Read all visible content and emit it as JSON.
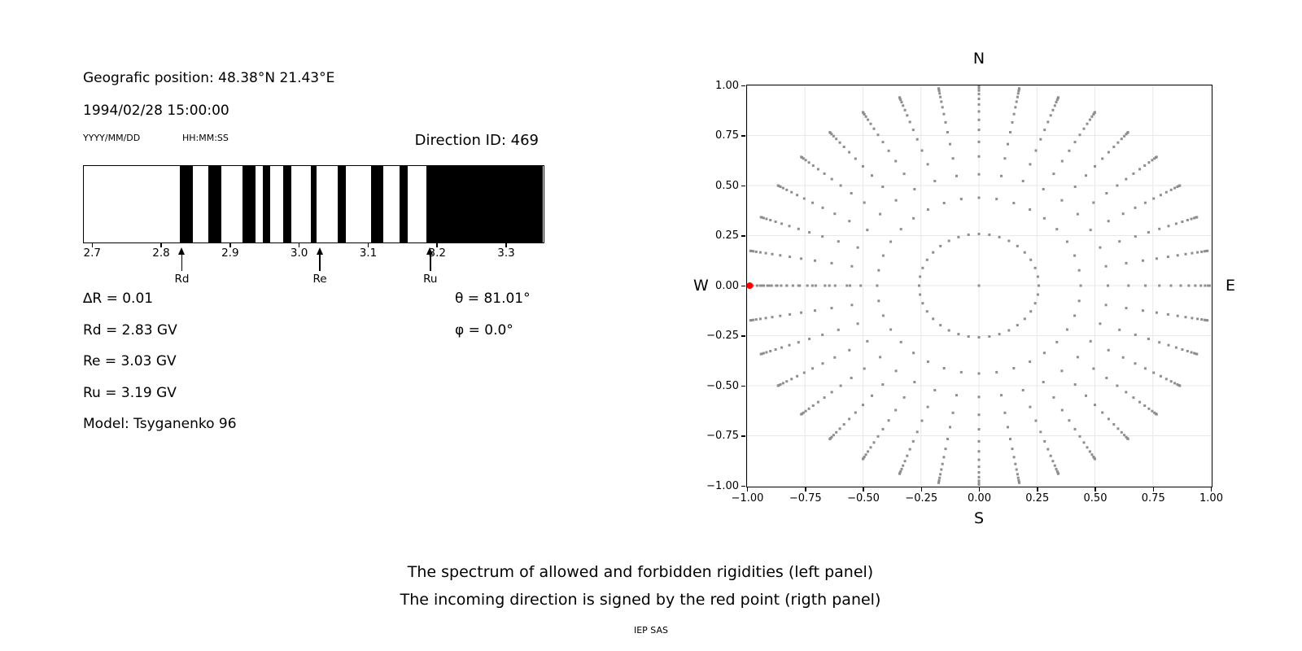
{
  "header": {
    "geo_position": "Geografic position: 48.38°N 21.43°E",
    "datetime": "1994/02/28 15:00:00",
    "date_format_label": "YYYY/MM/DD",
    "time_format_label": "HH:MM:SS",
    "direction_id": "Direction ID: 469"
  },
  "info": {
    "left_rows": [
      "∆R = 0.01",
      "Rd = 2.83 GV",
      "Re = 3.03 GV",
      "Ru = 3.19 GV",
      "Model: Tsyganenko 96"
    ],
    "right_rows": [
      "θ = 81.01°",
      "φ = 0.0°"
    ]
  },
  "captions": {
    "line1": "The spectrum of allowed and forbidden rigidities (left panel)",
    "line2": "The incoming direction is signed by the red point (rigth panel)",
    "credit": "IEP SAS"
  },
  "colors": {
    "band": "#000000",
    "dot": "#8e8e8e",
    "red_point": "#ff0000",
    "grid": "#e8e8e8",
    "axis": "#000000"
  },
  "chart_data": [
    {
      "type": "bar",
      "name": "rigidity-spectrum",
      "description": "Spectrum of allowed (white) and forbidden (black) rigidities in GV",
      "xlim": [
        2.6885,
        3.3536
      ],
      "x_ticks": [
        {
          "value": 2.7,
          "label": "2.7"
        },
        {
          "value": 2.8,
          "label": "2.8"
        },
        {
          "value": 2.9,
          "label": "2.9"
        },
        {
          "value": 3.0,
          "label": "3.0"
        },
        {
          "value": 3.1,
          "label": "3.1"
        },
        {
          "value": 3.2,
          "label": "3.2"
        },
        {
          "value": 3.3,
          "label": "3.3"
        }
      ],
      "forbidden_bands": [
        [
          2.828,
          2.847
        ],
        [
          2.869,
          2.888
        ],
        [
          2.919,
          2.937
        ],
        [
          2.948,
          2.958
        ],
        [
          2.978,
          2.989
        ],
        [
          3.018,
          3.026
        ],
        [
          3.057,
          3.068
        ],
        [
          3.105,
          3.123
        ],
        [
          3.146,
          3.158
        ],
        [
          3.185,
          3.3536
        ]
      ],
      "markers": [
        {
          "label": "Rd",
          "value": 2.83
        },
        {
          "label": "Re",
          "value": 3.03
        },
        {
          "label": "Ru",
          "value": 3.19
        }
      ],
      "values": {
        "delta_R": 0.01,
        "Rd_GV": 2.83,
        "Re_GV": 3.03,
        "Ru_GV": 3.19,
        "theta_deg": 81.01,
        "phi_deg": 0.0,
        "model": "Tsyganenko 96"
      }
    },
    {
      "type": "scatter",
      "name": "incoming-direction-grid",
      "description": "Grid of incoming directions; radius = sin(zenith), 36 azimuths every 10 deg; red point marks selected direction",
      "xlim": [
        -1,
        1
      ],
      "ylim": [
        -1,
        1
      ],
      "grid": true,
      "x_tick_labels": [
        "−1.00",
        "−0.75",
        "−0.50",
        "−0.25",
        "0.00",
        "0.25",
        "0.50",
        "0.75",
        "1.00"
      ],
      "y_tick_labels": [
        "1.00",
        "0.75",
        "0.50",
        "0.25",
        "0.00",
        "−0.25",
        "−0.50",
        "−0.75",
        "−1.00"
      ],
      "compass": {
        "north": "N",
        "east": "E",
        "south": "S",
        "west": "W"
      },
      "azimuth_step_deg": 10,
      "ring_radii": [
        0.258,
        0.439,
        0.556,
        0.645,
        0.718,
        0.778,
        0.828,
        0.87,
        0.905,
        0.933,
        0.957,
        0.975,
        0.988,
        0.996,
        1.0
      ],
      "west_spoke_extra_r": [
        0.51,
        0.569,
        0.62,
        0.664,
        0.704,
        0.74,
        0.773,
        0.802,
        0.829,
        0.853,
        0.874,
        0.894,
        0.912,
        0.928,
        0.942,
        0.955
      ],
      "center_dot": true,
      "red_point": {
        "x": -0.988,
        "y": 0.0
      }
    }
  ]
}
